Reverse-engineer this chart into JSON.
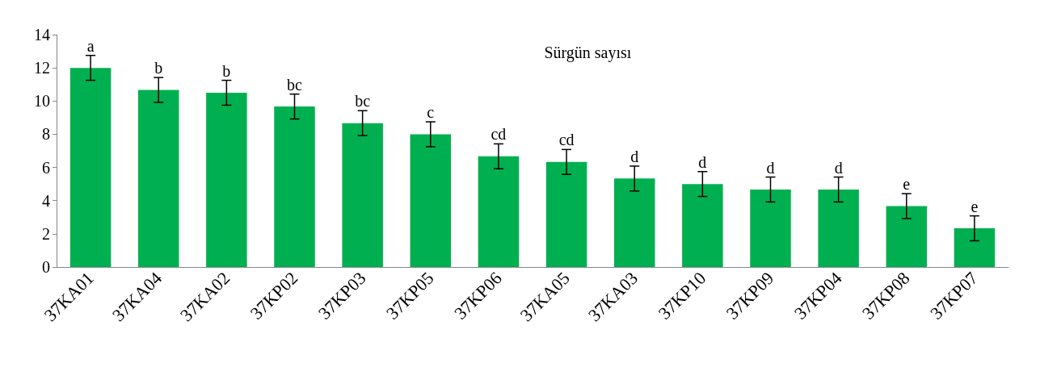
{
  "chart_data": {
    "type": "bar",
    "title": "Sürgün sayısı",
    "categories": [
      "37KA01",
      "37KA04",
      "37KA02",
      "37KP02",
      "37KP03",
      "37KP05",
      "37KP06",
      "37KA05",
      "37KA03",
      "37KP10",
      "37KP09",
      "37KP04",
      "37KP08",
      "37KP07"
    ],
    "values": [
      12,
      10.67,
      10.5,
      9.67,
      8.67,
      8,
      6.67,
      6.33,
      5.33,
      5,
      4.67,
      4.67,
      3.67,
      2.33
    ],
    "errors": [
      0.75,
      0.75,
      0.75,
      0.75,
      0.75,
      0.75,
      0.75,
      0.75,
      0.75,
      0.75,
      0.75,
      0.75,
      0.75,
      0.75
    ],
    "value_labels": [
      "a",
      "b",
      "b",
      "bc",
      "bc",
      "c",
      "cd",
      "cd",
      "d",
      "d",
      "d",
      "d",
      "e",
      "e"
    ],
    "color": "#00b050",
    "ylim": [
      0,
      14
    ],
    "yticks": [
      0,
      2,
      4,
      6,
      8,
      10,
      12,
      14
    ],
    "grid": false
  }
}
